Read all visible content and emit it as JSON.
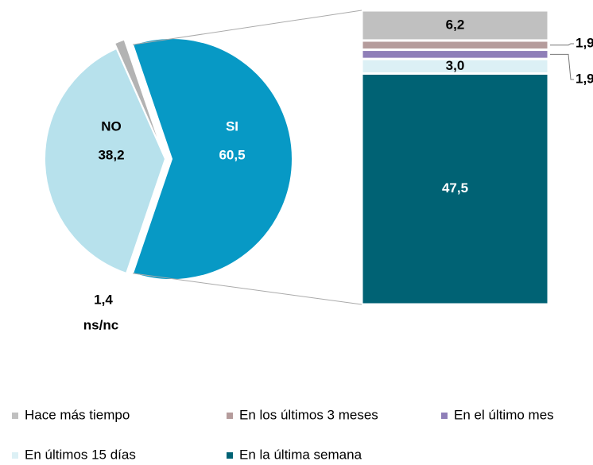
{
  "chart_data": [
    {
      "type": "pie",
      "categories": [
        "SI",
        "NO",
        "ns/nc"
      ],
      "values": [
        60.5,
        38.2,
        1.4
      ],
      "value_labels": [
        "60,5",
        "38,2",
        "1,4"
      ],
      "colors": [
        "#0799c5",
        "#b7e1ec",
        "#b3b3b3"
      ]
    },
    {
      "type": "stacked_bar",
      "series": [
        {
          "name": "Hace más tiempo",
          "color": "#c0c0c0",
          "values": [
            6.2
          ],
          "value_labels": [
            "6,2"
          ]
        },
        {
          "name": "En los últimos 3 meses",
          "color": "#b59c9c",
          "values": [
            1.9
          ],
          "value_labels": [
            "1,9"
          ]
        },
        {
          "name": "En el último mes",
          "color": "#8f7fb8",
          "values": [
            1.9
          ],
          "value_labels": [
            "1,9"
          ]
        },
        {
          "name": "En últimos 15 días",
          "color": "#dcf0f5",
          "values": [
            3.0
          ],
          "value_labels": [
            "3,0"
          ]
        },
        {
          "name": "En la última semana",
          "color": "#006274",
          "values": [
            47.5
          ],
          "value_labels": [
            "47,5"
          ]
        }
      ]
    }
  ]
}
